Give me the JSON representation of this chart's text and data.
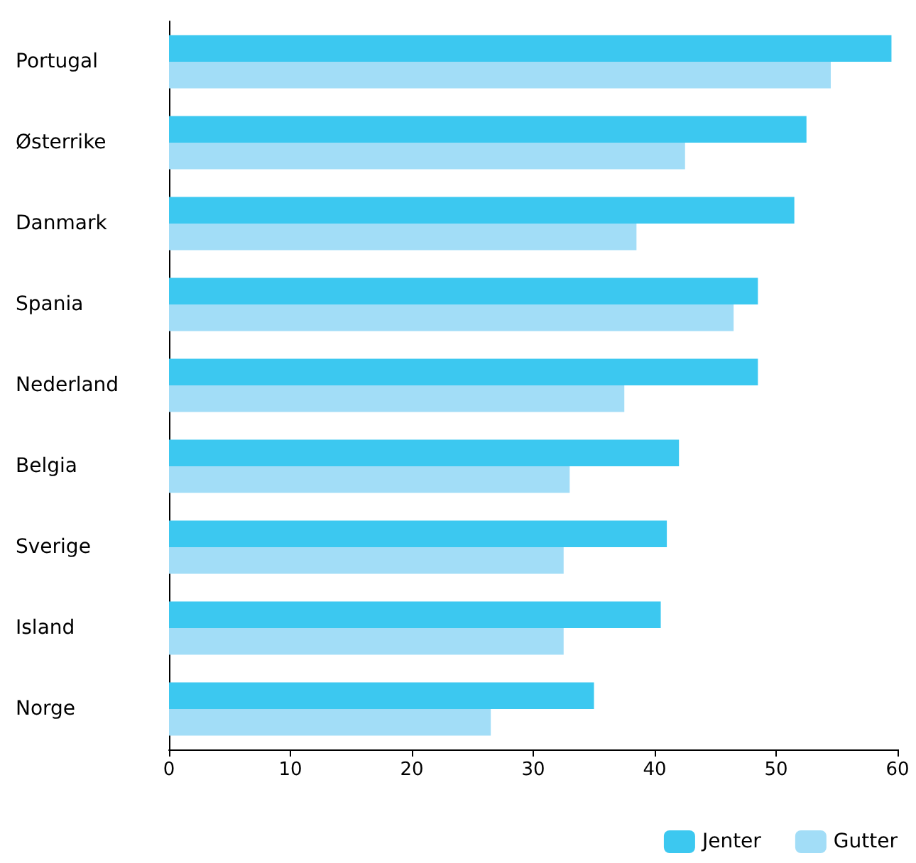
{
  "chart_data": {
    "type": "bar",
    "orientation": "horizontal",
    "categories": [
      "Portugal",
      "Østerrike",
      "Danmark",
      "Spania",
      "Nederland",
      "Belgia",
      "Sverige",
      "Island",
      "Norge"
    ],
    "series": [
      {
        "name": "Jenter",
        "color": "#3cc8f0",
        "values": [
          59.5,
          52.5,
          51.5,
          48.5,
          48.5,
          42,
          41,
          40.5,
          35
        ]
      },
      {
        "name": "Gutter",
        "color": "#a2ddf7",
        "values": [
          54.5,
          42.5,
          38.5,
          46.5,
          37.5,
          33,
          32.5,
          32.5,
          26.5
        ]
      }
    ],
    "xlim": [
      0,
      60
    ],
    "xticks": [
      0,
      10,
      20,
      30,
      40,
      50,
      60
    ],
    "grid": false,
    "legend": "bottom right"
  }
}
